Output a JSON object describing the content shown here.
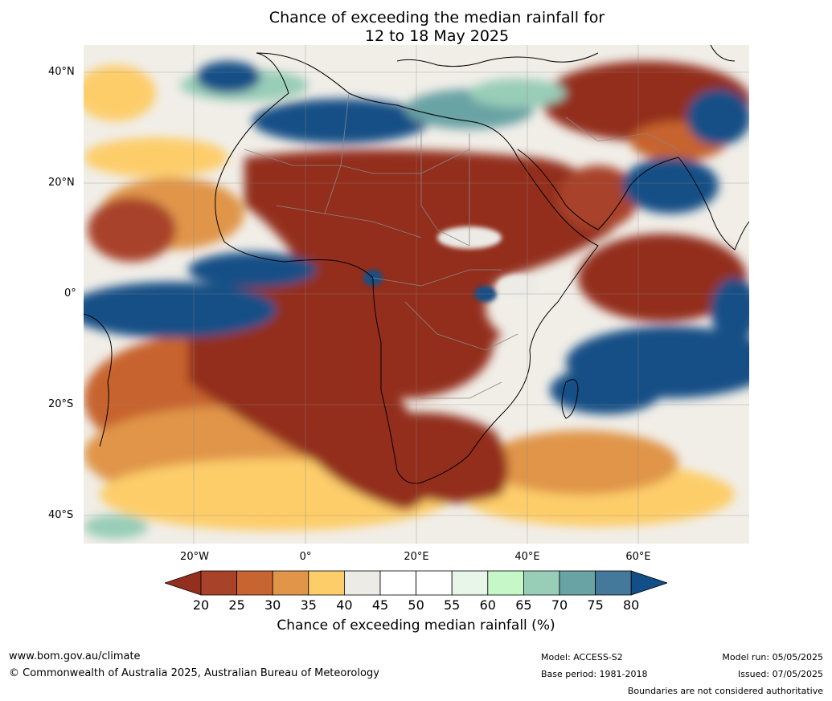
{
  "title": {
    "line1": "Chance of exceeding the median rainfall for",
    "line2": "12 to 18 May 2025"
  },
  "map": {
    "lat_labels": [
      "40°N",
      "20°N",
      "0°",
      "20°S",
      "40°S"
    ],
    "lon_labels": [
      "20°W",
      "0°",
      "20°E",
      "40°E",
      "60°E"
    ]
  },
  "colorbar": {
    "ticks": [
      "20",
      "25",
      "30",
      "35",
      "40",
      "45",
      "50",
      "55",
      "60",
      "65",
      "70",
      "75",
      "80"
    ],
    "colors": [
      "#932f1f",
      "#a8432a",
      "#c7642f",
      "#e09548",
      "#fdcd6a",
      "#ecebe6",
      "#ffffff",
      "#ffffff",
      "#e7f6e9",
      "#c6f7c9",
      "#98cdb7",
      "#6aa3a4",
      "#44799b",
      "#124f86"
    ],
    "label": "Chance of exceeding median rainfall (%)"
  },
  "footer": {
    "website": "www.bom.gov.au/climate",
    "copyright": "© Commonwealth of Australia 2025, Australian Bureau of Meteorology",
    "model": "Model: ACCESS-S2",
    "base_period": "Base period: 1981-2018",
    "model_run": "Model run: 05/05/2025",
    "issued": "Issued: 07/05/2025",
    "disclaimer": "Boundaries are not considered authoritative"
  }
}
